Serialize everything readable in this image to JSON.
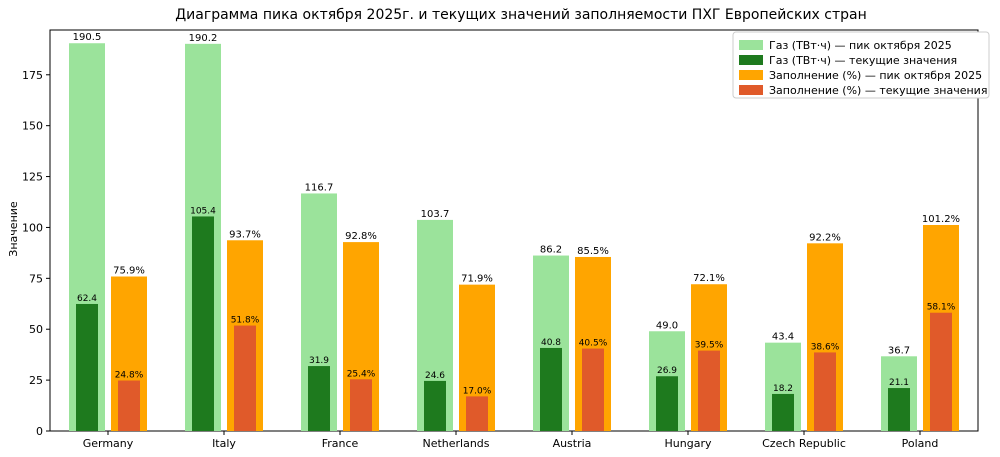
{
  "chart_data": {
    "type": "bar",
    "title": "Диаграмма пика октября 2025г. и текущих значений заполняемости ПХГ Европейских стран",
    "xlabel": "",
    "ylabel": "Значение",
    "ylim": [
      0,
      197
    ],
    "yticks": [
      0,
      25,
      50,
      75,
      100,
      125,
      150,
      175
    ],
    "grid": false,
    "legend_position": "top-right",
    "categories": [
      "Germany",
      "Italy",
      "France",
      "Netherlands",
      "Austria",
      "Hungary",
      "Czech Republic",
      "Poland"
    ],
    "series": [
      {
        "name": "Газ (ТВт·ч) — пик октября 2025",
        "color": "#9be39b",
        "values": [
          190.5,
          190.2,
          116.7,
          103.7,
          86.2,
          49.0,
          43.4,
          36.7
        ],
        "labels": [
          "190.5",
          "190.2",
          "116.7",
          "103.7",
          "86.2",
          "49.0",
          "43.4",
          "36.7"
        ]
      },
      {
        "name": "Газ (ТВт·ч) — текущие значения",
        "color": "#1e7a1e",
        "values": [
          62.4,
          105.4,
          31.9,
          24.6,
          40.8,
          26.9,
          18.2,
          21.1
        ],
        "labels": [
          "62.4",
          "105.4",
          "31.9",
          "24.6",
          "40.8",
          "26.9",
          "18.2",
          "21.1"
        ]
      },
      {
        "name": "Заполнение (%) — пик октября 2025",
        "color": "#ffa500",
        "values": [
          75.9,
          93.7,
          92.8,
          71.9,
          85.5,
          72.1,
          92.2,
          101.2
        ],
        "labels": [
          "75.9%",
          "93.7%",
          "92.8%",
          "71.9%",
          "85.5%",
          "72.1%",
          "92.2%",
          "101.2%"
        ]
      },
      {
        "name": "Заполнение (%) — текущие значения",
        "color": "#e05a2a",
        "values": [
          24.8,
          51.8,
          25.4,
          17.0,
          40.5,
          39.5,
          38.6,
          58.1
        ],
        "labels": [
          "24.8%",
          "51.8%",
          "25.4%",
          "17.0%",
          "40.5%",
          "39.5%",
          "38.6%",
          "58.1%"
        ]
      }
    ]
  }
}
